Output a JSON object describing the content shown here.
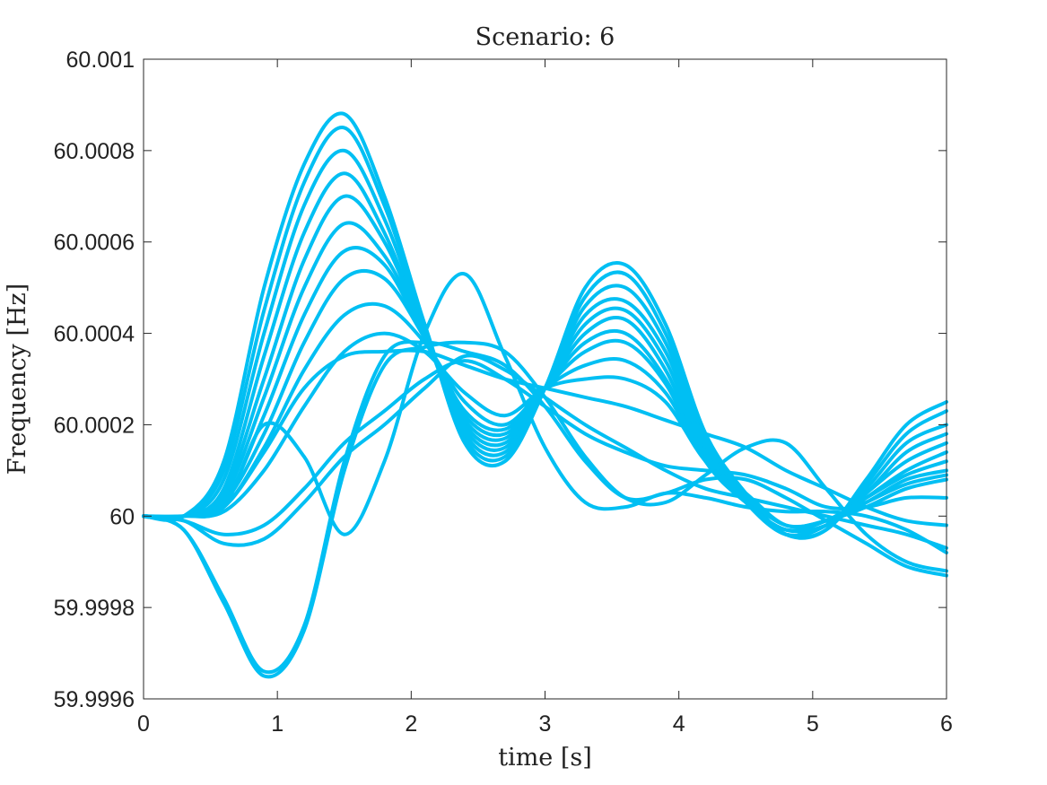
{
  "chart_data": {
    "type": "line",
    "title": "Scenario: 6",
    "xlabel": "time [s]",
    "ylabel": "Frequency [Hz]",
    "xlim": [
      0,
      6
    ],
    "ylim": [
      59.9996,
      60.001
    ],
    "xticks": [
      0,
      1,
      2,
      3,
      4,
      5,
      6
    ],
    "xtick_labels": [
      "0",
      "1",
      "2",
      "3",
      "4",
      "5",
      "6"
    ],
    "yticks": [
      59.9996,
      59.9998,
      60.0,
      60.0002,
      60.0004,
      60.0006,
      60.0008,
      60.001
    ],
    "ytick_labels": [
      "59.9996",
      "59.9998",
      "60",
      "60.0002",
      "60.0004",
      "60.0006",
      "60.0008",
      "60.001"
    ],
    "grid": false,
    "line_color": "#00bff3",
    "series": [
      {
        "x": [
          0,
          0.3,
          0.6,
          0.9,
          1.2,
          1.5,
          1.8,
          2.1,
          2.4,
          2.7,
          3.0,
          3.3,
          3.6,
          3.9,
          4.2,
          4.5,
          4.8,
          5.1,
          5.4,
          5.7,
          6.0
        ],
        "y": [
          60.0,
          60.0,
          60.00012,
          60.0005,
          60.00077,
          60.00088,
          60.0007,
          60.00042,
          60.00016,
          60.00012,
          60.00028,
          60.0005,
          60.00055,
          60.00042,
          60.00018,
          60.00005,
          59.99996,
          59.99997,
          60.00008,
          60.0002,
          60.00025
        ]
      },
      {
        "x": [
          0,
          0.3,
          0.6,
          0.9,
          1.2,
          1.5,
          1.8,
          2.1,
          2.4,
          2.7,
          3.0,
          3.3,
          3.6,
          3.9,
          4.2,
          4.5,
          4.8,
          5.1,
          5.4,
          5.7,
          6.0
        ],
        "y": [
          60.0,
          60.0,
          60.0001,
          60.00045,
          60.00073,
          60.00085,
          60.00068,
          60.00042,
          60.00017,
          60.00013,
          60.00028,
          60.00048,
          60.00053,
          60.0004,
          60.00017,
          60.00004,
          59.99996,
          59.99997,
          60.00007,
          60.00018,
          60.00023
        ]
      },
      {
        "x": [
          0,
          0.3,
          0.6,
          0.9,
          1.2,
          1.5,
          1.8,
          2.1,
          2.4,
          2.7,
          3.0,
          3.3,
          3.6,
          3.9,
          4.2,
          4.5,
          4.8,
          5.1,
          5.4,
          5.7,
          6.0
        ],
        "y": [
          60.0,
          60.0,
          60.00008,
          60.0004,
          60.00068,
          60.0008,
          60.00065,
          60.00041,
          60.00018,
          60.00014,
          60.00028,
          60.00046,
          60.0005,
          60.00038,
          60.00016,
          60.00004,
          59.99996,
          59.99998,
          60.00006,
          60.00016,
          60.0002
        ]
      },
      {
        "x": [
          0,
          0.3,
          0.6,
          0.9,
          1.2,
          1.5,
          1.8,
          2.1,
          2.4,
          2.7,
          3.0,
          3.3,
          3.6,
          3.9,
          4.2,
          4.5,
          4.8,
          5.1,
          5.4,
          5.7,
          6.0
        ],
        "y": [
          60.0,
          60.0,
          60.00006,
          60.00035,
          60.00062,
          60.00075,
          60.00062,
          60.0004,
          60.00019,
          60.00015,
          60.00028,
          60.00044,
          60.00047,
          60.00036,
          60.00015,
          60.00003,
          59.99996,
          59.99998,
          60.00005,
          60.00014,
          60.00018
        ]
      },
      {
        "x": [
          0,
          0.3,
          0.6,
          0.9,
          1.2,
          1.5,
          1.8,
          2.1,
          2.4,
          2.7,
          3.0,
          3.3,
          3.6,
          3.9,
          4.2,
          4.5,
          4.8,
          5.1,
          5.4,
          5.7,
          6.0
        ],
        "y": [
          60.0,
          60.0,
          60.00005,
          60.0003,
          60.00056,
          60.0007,
          60.0006,
          60.0004,
          60.0002,
          60.00016,
          60.00028,
          60.00042,
          60.00045,
          60.00034,
          60.00014,
          60.00003,
          59.99996,
          59.99998,
          60.00005,
          60.00012,
          60.00016
        ]
      },
      {
        "x": [
          0,
          0.3,
          0.6,
          0.9,
          1.2,
          1.5,
          1.8,
          2.1,
          2.4,
          2.7,
          3.0,
          3.3,
          3.6,
          3.9,
          4.2,
          4.5,
          4.8,
          5.1,
          5.4,
          5.7,
          6.0
        ],
        "y": [
          60.0,
          60.0,
          60.00004,
          60.00026,
          60.0005,
          60.00064,
          60.00057,
          60.0004,
          60.00021,
          60.00017,
          60.00028,
          60.0004,
          60.00043,
          60.00032,
          60.00013,
          60.00003,
          59.99997,
          59.99998,
          60.00004,
          60.0001,
          60.00014
        ]
      },
      {
        "x": [
          0,
          0.3,
          0.6,
          0.9,
          1.2,
          1.5,
          1.8,
          2.1,
          2.4,
          2.7,
          3.0,
          3.3,
          3.6,
          3.9,
          4.2,
          4.5,
          4.8,
          5.1,
          5.4,
          5.7,
          6.0
        ],
        "y": [
          60.0,
          60.0,
          60.00003,
          60.00022,
          60.00044,
          60.00058,
          60.00055,
          60.00039,
          60.00022,
          60.00018,
          60.00028,
          60.00038,
          60.0004,
          60.0003,
          60.00012,
          60.00003,
          59.99997,
          59.99999,
          60.00004,
          60.00009,
          60.00012
        ]
      },
      {
        "x": [
          0,
          0.3,
          0.6,
          0.9,
          1.2,
          1.5,
          1.8,
          2.1,
          2.4,
          2.7,
          3.0,
          3.3,
          3.6,
          3.9,
          4.2,
          4.5,
          4.8,
          5.1,
          5.4,
          5.7,
          6.0
        ],
        "y": [
          60.0,
          60.0,
          60.00003,
          60.00018,
          60.00038,
          60.00052,
          60.00052,
          60.00039,
          60.00023,
          60.00019,
          60.00028,
          60.00036,
          60.00038,
          60.00029,
          60.00012,
          60.00003,
          59.99997,
          59.99999,
          60.00003,
          60.00008,
          60.0001
        ]
      },
      {
        "x": [
          0,
          0.3,
          0.6,
          0.9,
          1.2,
          1.5,
          1.8,
          2.1,
          2.4,
          2.7,
          3.0,
          3.3,
          3.6,
          3.9,
          4.2,
          4.5,
          4.8,
          5.1,
          5.4,
          5.7,
          6.0
        ],
        "y": [
          60.0,
          60.0,
          60.00002,
          60.00015,
          60.00032,
          60.00044,
          60.00046,
          60.00038,
          60.00025,
          60.0002,
          60.00028,
          60.00033,
          60.00034,
          60.00027,
          60.00012,
          60.00004,
          59.99998,
          59.99999,
          60.00003,
          60.00007,
          60.00009
        ]
      },
      {
        "x": [
          0,
          0.3,
          0.6,
          0.9,
          1.2,
          1.5,
          1.8,
          2.1,
          2.4,
          2.7,
          3.0,
          3.3,
          3.6,
          3.9,
          4.2,
          4.5,
          4.8,
          5.1,
          5.4,
          5.7,
          6.0
        ],
        "y": [
          60.0,
          60.0,
          60.00001,
          60.0001,
          60.00024,
          60.00036,
          60.0004,
          60.00036,
          60.00027,
          60.00022,
          60.00028,
          60.0003,
          60.0003,
          60.00025,
          60.00012,
          60.00005,
          59.99998,
          59.99999,
          60.00002,
          60.00006,
          60.00008
        ]
      },
      {
        "x": [
          0,
          0.3,
          0.6,
          0.9,
          1.2,
          1.5,
          1.8,
          2.1,
          2.4,
          2.7,
          3.0,
          3.3,
          3.6,
          3.9,
          4.2,
          4.5,
          4.8,
          5.1,
          5.4,
          5.7,
          6.0
        ],
        "y": [
          60.0,
          60.0,
          60.00002,
          60.00014,
          60.00028,
          60.00035,
          60.00036,
          60.00036,
          60.00033,
          60.0003,
          60.00028,
          60.00026,
          60.00024,
          60.00021,
          60.00018,
          60.00015,
          60.0001,
          60.00006,
          60.00002,
          59.99999,
          59.99998
        ]
      },
      {
        "x": [
          0,
          0.3,
          0.6,
          0.9,
          1.2,
          1.5,
          1.8,
          2.1,
          2.4,
          2.7,
          3.0,
          3.3,
          3.6,
          3.9,
          4.2,
          4.5,
          4.8,
          5.1,
          5.4,
          5.7,
          6.0
        ],
        "y": [
          60.0,
          60.0,
          60.00002,
          60.0002,
          60.00013,
          59.99996,
          60.00012,
          60.0004,
          60.00053,
          60.00035,
          60.00015,
          60.00003,
          60.00002,
          60.00005,
          60.00004,
          60.00002,
          60.00001,
          60.00001,
          60.0,
          59.99997,
          59.99992
        ]
      },
      {
        "x": [
          0,
          0.3,
          0.6,
          0.9,
          1.2,
          1.5,
          1.8,
          2.1,
          2.4,
          2.7,
          3.0,
          3.3,
          3.6,
          3.9,
          4.2,
          4.5,
          4.8,
          5.1,
          5.4,
          5.7,
          6.0
        ],
        "y": [
          60.0,
          59.99997,
          59.99982,
          59.99966,
          59.99976,
          60.00012,
          60.00035,
          60.00038,
          60.00036,
          60.00033,
          60.00024,
          60.00012,
          60.00004,
          60.00005,
          60.00008,
          60.00008,
          60.00004,
          59.99999,
          59.99994,
          59.99989,
          59.99987
        ]
      },
      {
        "x": [
          0,
          0.3,
          0.6,
          0.9,
          1.2,
          1.5,
          1.8,
          2.1,
          2.4,
          2.7,
          3.0,
          3.3,
          3.6,
          3.9,
          4.2,
          4.5,
          4.8,
          5.1,
          5.4,
          5.7,
          6.0
        ],
        "y": [
          60.0,
          59.99997,
          59.99981,
          59.99965,
          59.99975,
          60.0001,
          60.00033,
          60.00037,
          60.00038,
          60.00036,
          60.00026,
          60.00013,
          60.00004,
          60.00003,
          60.00009,
          60.00015,
          60.00016,
          60.00006,
          59.99996,
          59.9999,
          59.99988
        ]
      },
      {
        "x": [
          0,
          0.3,
          0.6,
          0.9,
          1.2,
          1.5,
          1.8,
          2.1,
          2.4,
          2.7,
          3.0,
          3.3,
          3.6,
          3.9,
          4.2,
          4.5,
          4.8,
          5.1,
          5.4,
          5.7,
          6.0
        ],
        "y": [
          60.0,
          59.99999,
          59.99996,
          59.99998,
          60.00006,
          60.00016,
          60.00023,
          60.0003,
          60.00034,
          60.0003,
          60.00024,
          60.00018,
          60.00014,
          60.00011,
          60.0001,
          60.00009,
          60.00006,
          60.00002,
          60.00002,
          60.00004,
          60.00004
        ]
      },
      {
        "x": [
          0,
          0.3,
          0.6,
          0.9,
          1.2,
          1.5,
          1.8,
          2.1,
          2.4,
          2.7,
          3.0,
          3.3,
          3.6,
          3.9,
          4.2,
          4.5,
          4.8,
          5.1,
          5.4,
          5.7,
          6.0
        ],
        "y": [
          60.0,
          59.99999,
          59.99994,
          59.99995,
          60.00003,
          60.00013,
          60.0002,
          60.00028,
          60.00035,
          60.00032,
          60.00026,
          60.0002,
          60.00015,
          60.0001,
          60.00006,
          60.00004,
          60.00002,
          60.0,
          59.99998,
          59.99996,
          59.99993
        ]
      }
    ]
  }
}
